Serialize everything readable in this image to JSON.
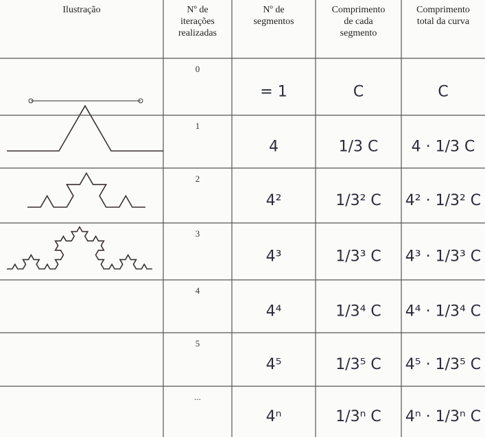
{
  "table": {
    "header": [
      "Ilustração",
      "Nº de iterações realizadas",
      "Nº de segmentos",
      "Comprimento de cada segmento",
      "Comprimento total da curva"
    ],
    "rows": [
      [
        "0",
        "= 1",
        "C",
        "C"
      ],
      [
        "1",
        "4",
        "1/3 C",
        "4 · 1/3 C"
      ],
      [
        "2",
        "4²",
        "1/3² C",
        "4² · 1/3² C"
      ],
      [
        "3",
        "4³",
        "1/3³ C",
        "4³ · 1/3³ C"
      ],
      [
        "4",
        "4⁴",
        "1/3⁴ C",
        "4⁴ · 1/3⁴ C"
      ],
      [
        "5",
        "4⁵",
        "1/3⁵ C",
        "4⁵ · 1/3⁵ C"
      ],
      [
        "...",
        "4ⁿ",
        "1/3ⁿ C",
        "4ⁿ · 1/3ⁿ C"
      ]
    ]
  }
}
